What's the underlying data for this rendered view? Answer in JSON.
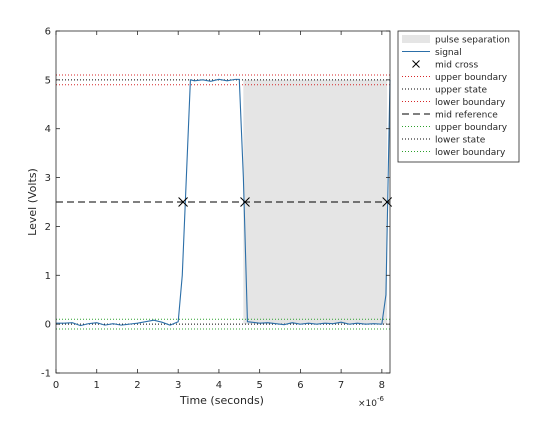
{
  "chart_data": {
    "type": "line",
    "xlabel": "Time (seconds)",
    "ylabel": "Level (Volts)",
    "x_exponent": "×10",
    "x_exponent_power": "-6",
    "xlim": [
      0,
      8.2
    ],
    "ylim": [
      -1,
      6
    ],
    "xticks": [
      0,
      1,
      2,
      3,
      4,
      5,
      6,
      7,
      8
    ],
    "yticks": [
      -1,
      0,
      1,
      2,
      3,
      4,
      5,
      6
    ],
    "grid": false,
    "legend_placement": "top-right outside",
    "colors": {
      "signal": "#2c6fa8",
      "pulse_separation": "#e5e5e5",
      "state_dots": "#000000",
      "upper_boundary": "#d62728",
      "lower_boundary": "#2ca02c",
      "axis": "#262626"
    },
    "pulse_separation": {
      "x_start": 4.6,
      "x_end": 8.13,
      "y_low": 0,
      "y_high": 5
    },
    "signal": {
      "x": [
        0,
        0.2,
        0.4,
        0.6,
        0.8,
        1.0,
        1.2,
        1.4,
        1.6,
        1.8,
        2.0,
        2.2,
        2.4,
        2.6,
        2.8,
        3.0,
        3.1,
        3.2,
        3.3,
        3.4,
        3.6,
        3.8,
        4.0,
        4.2,
        4.4,
        4.5,
        4.6,
        4.7,
        4.8,
        5.0,
        5.2,
        5.4,
        5.6,
        5.8,
        6.0,
        6.2,
        6.4,
        6.6,
        6.8,
        7.0,
        7.2,
        7.4,
        7.6,
        7.8,
        8.0,
        8.1,
        8.2
      ],
      "y": [
        0.02,
        0.02,
        0.03,
        -0.03,
        0.01,
        0.03,
        -0.02,
        0.01,
        -0.02,
        0.0,
        0.02,
        0.05,
        0.08,
        0.04,
        -0.02,
        0.05,
        1.0,
        3.0,
        5.0,
        4.98,
        5.0,
        4.97,
        5.01,
        4.98,
        5.01,
        5.01,
        3.0,
        0.05,
        0.04,
        0.02,
        0.03,
        0.01,
        -0.01,
        0.03,
        0.0,
        0.02,
        0.0,
        0.02,
        0.01,
        0.04,
        0.0,
        0.02,
        0.0,
        0.01,
        0.0,
        0.6,
        5.0
      ]
    },
    "mid_crosses": [
      {
        "x": 3.12,
        "y": 2.5
      },
      {
        "x": 4.64,
        "y": 2.5
      },
      {
        "x": 8.13,
        "y": 2.5
      }
    ],
    "upper_state": 5.0,
    "upper_boundaries": [
      5.1,
      4.9
    ],
    "mid_reference": 2.5,
    "lower_state": 0.0,
    "lower_boundaries": [
      0.1,
      -0.1
    ],
    "legend": [
      {
        "label": "pulse separation",
        "kind": "patch",
        "color": "#e5e5e5"
      },
      {
        "label": "signal",
        "kind": "line",
        "color": "#2c6fa8",
        "dash": ""
      },
      {
        "label": "mid cross",
        "kind": "marker",
        "color": "#000000"
      },
      {
        "label": "upper boundary",
        "kind": "line",
        "color": "#d62728",
        "dash": "1,2"
      },
      {
        "label": "upper state",
        "kind": "line",
        "color": "#000000",
        "dash": "1,2"
      },
      {
        "label": "lower boundary",
        "kind": "line",
        "color": "#d62728",
        "dash": "1,2"
      },
      {
        "label": "mid reference",
        "kind": "line",
        "color": "#000000",
        "dash": "7,4"
      },
      {
        "label": "upper boundary",
        "kind": "line",
        "color": "#2ca02c",
        "dash": "1,2"
      },
      {
        "label": "lower state",
        "kind": "line",
        "color": "#000000",
        "dash": "1,2"
      },
      {
        "label": "lower boundary",
        "kind": "line",
        "color": "#2ca02c",
        "dash": "1,2"
      }
    ]
  }
}
